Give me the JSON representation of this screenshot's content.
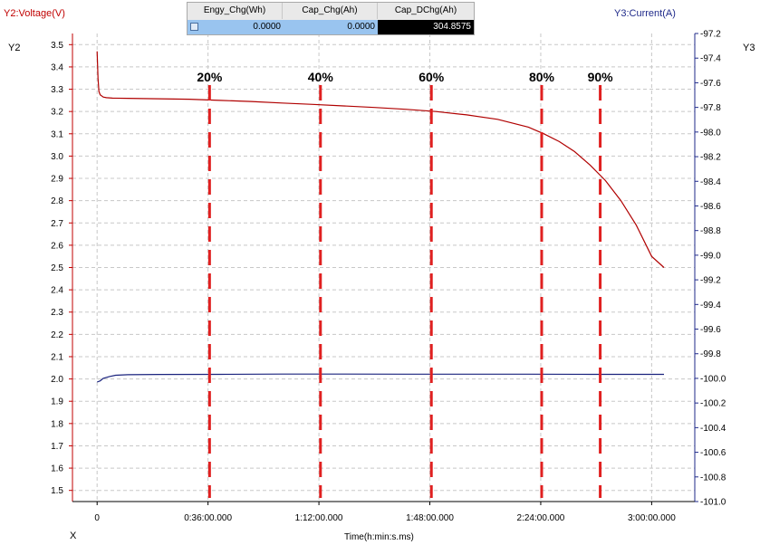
{
  "readout": {
    "columns": [
      {
        "header": "Engy_Chg(Wh)",
        "value": "0.0000"
      },
      {
        "header": "Cap_Chg(Ah)",
        "value": "0.0000"
      },
      {
        "header": "Cap_DChg(Ah)",
        "value": "304.8575"
      }
    ]
  },
  "colors": {
    "voltage": "#b00000",
    "current": "#1a237e",
    "marker": "#e02020",
    "grid": "#c8c8c8",
    "left_axis": "#c00000",
    "right_axis": "#1f2a8a"
  },
  "chart_data": {
    "type": "line",
    "title": "",
    "y2_title": "Y2:Voltage(V)",
    "y3_title": "Y3:Current(A)",
    "y2_name": "Y2",
    "y3_name": "Y3",
    "x_name": "X",
    "xlabel": "Time(h:min:s.ms)",
    "x_ticks": [
      {
        "value": 0,
        "label": "0"
      },
      {
        "value": 36,
        "label": "0:36:00.000"
      },
      {
        "value": 72,
        "label": "1:12:00.000"
      },
      {
        "value": 108,
        "label": "1:48:00.000"
      },
      {
        "value": 144,
        "label": "2:24:00.000"
      },
      {
        "value": 180,
        "label": "3:00:00.000"
      }
    ],
    "xlim": [
      -8,
      194
    ],
    "y2lim": [
      1.45,
      3.55
    ],
    "y2_ticks": [
      "1.5",
      "1.6",
      "1.7",
      "1.8",
      "1.9",
      "2.0",
      "2.1",
      "2.2",
      "2.3",
      "2.4",
      "2.5",
      "2.6",
      "2.7",
      "2.8",
      "2.9",
      "3.0",
      "3.1",
      "3.2",
      "3.3",
      "3.4",
      "3.5"
    ],
    "y3lim": [
      -101.0,
      -97.2
    ],
    "y3_ticks": [
      "-101.0",
      "-100.8",
      "-100.6",
      "-100.4",
      "-100.2",
      "-100.0",
      "-99.8",
      "-99.6",
      "-99.4",
      "-99.2",
      "-99.0",
      "-98.8",
      "-98.6",
      "-98.4",
      "-98.2",
      "-98.0",
      "-97.8",
      "-97.6",
      "-97.4",
      "-97.2"
    ],
    "grid": true,
    "series": [
      {
        "name": "Voltage",
        "axis": "y2",
        "x": [
          0,
          0.3,
          0.6,
          1,
          2,
          3,
          5,
          10,
          20,
          30,
          40,
          50,
          60,
          70,
          80,
          90,
          100,
          110,
          120,
          130,
          140,
          145,
          150,
          155,
          160,
          165,
          170,
          175,
          180,
          184
        ],
        "y": [
          3.47,
          3.35,
          3.29,
          3.275,
          3.265,
          3.262,
          3.26,
          3.259,
          3.257,
          3.255,
          3.25,
          3.245,
          3.238,
          3.232,
          3.225,
          3.218,
          3.21,
          3.2,
          3.185,
          3.165,
          3.13,
          3.1,
          3.065,
          3.02,
          2.96,
          2.89,
          2.8,
          2.69,
          2.55,
          2.5
        ]
      },
      {
        "name": "Current",
        "axis": "y3",
        "x": [
          0,
          1,
          2,
          4,
          6,
          10,
          20,
          40,
          60,
          80,
          100,
          120,
          140,
          160,
          184
        ],
        "y": [
          -100.03,
          -100.02,
          -100.0,
          -99.985,
          -99.975,
          -99.97,
          -99.968,
          -99.967,
          -99.965,
          -99.965,
          -99.966,
          -99.966,
          -99.966,
          -99.967,
          -99.967
        ]
      }
    ],
    "annotations": [
      {
        "label": "20%",
        "x": 36.5
      },
      {
        "label": "40%",
        "x": 72.5
      },
      {
        "label": "60%",
        "x": 108.5
      },
      {
        "label": "80%",
        "x": 144.3
      },
      {
        "label": "90%",
        "x": 163.3
      }
    ]
  }
}
